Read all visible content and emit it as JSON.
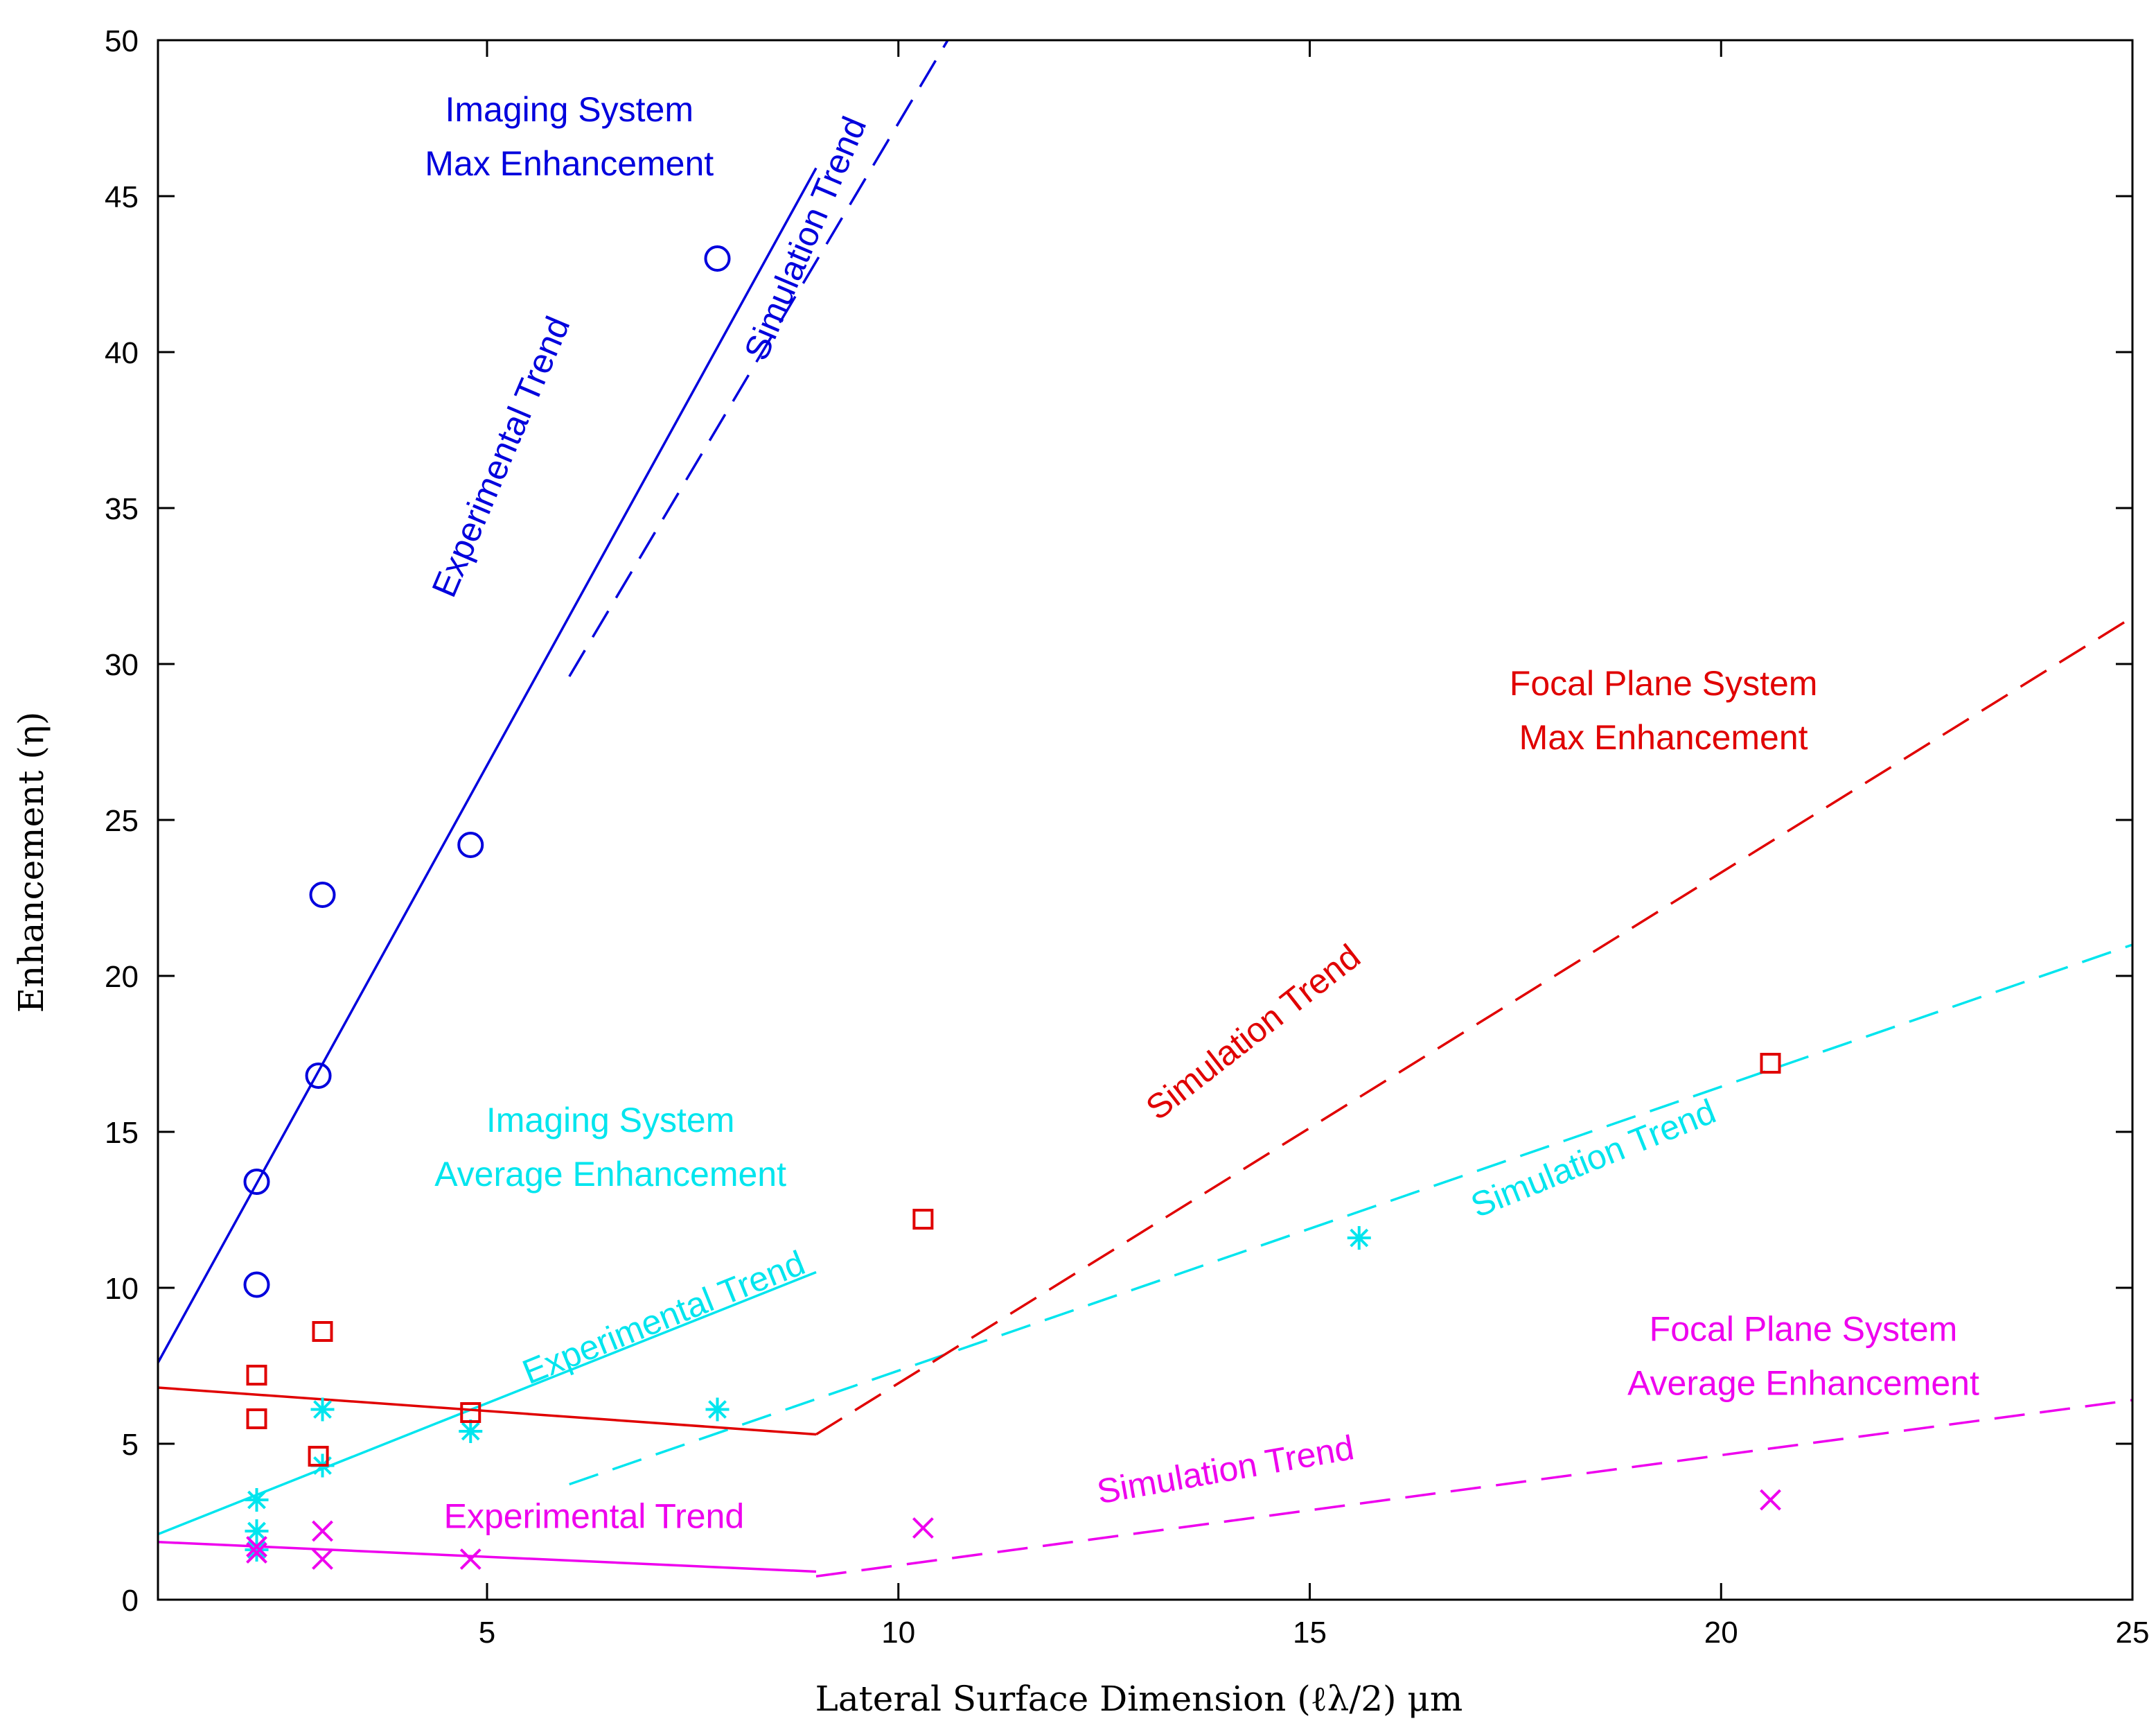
{
  "chart_data": {
    "type": "scatter",
    "title": "",
    "xlabel": "Lateral Surface Dimension (ℓλ/2) μm",
    "ylabel": "Enhancement (η)",
    "xlim": [
      1,
      25
    ],
    "ylim": [
      0,
      50
    ],
    "xticks": [
      5,
      10,
      15,
      20,
      25
    ],
    "yticks": [
      0,
      5,
      10,
      15,
      20,
      25,
      30,
      35,
      40,
      45,
      50
    ],
    "colors": {
      "imaging_max": "#0000dd",
      "imaging_avg": "#00e5ee",
      "focal_max": "#e00000",
      "focal_avg": "#ee00ee"
    },
    "series": [
      {
        "name": "Imaging System Max Enhancement",
        "marker": "circle",
        "color": "#0000dd",
        "points": [
          [
            2.2,
            13.4
          ],
          [
            2.2,
            10.1
          ],
          [
            2.95,
            16.8
          ],
          [
            3.0,
            22.6
          ],
          [
            4.8,
            24.2
          ],
          [
            7.8,
            43.0
          ]
        ]
      },
      {
        "name": "Imaging System Average Enhancement",
        "marker": "star",
        "color": "#00e5ee",
        "points": [
          [
            2.2,
            3.2
          ],
          [
            2.2,
            2.2
          ],
          [
            2.2,
            1.6
          ],
          [
            3.0,
            6.1
          ],
          [
            3.0,
            4.3
          ],
          [
            4.8,
            5.4
          ],
          [
            7.8,
            6.1
          ],
          [
            15.6,
            11.6
          ]
        ]
      },
      {
        "name": "Focal Plane System Max Enhancement",
        "marker": "square",
        "color": "#e00000",
        "points": [
          [
            2.2,
            7.2
          ],
          [
            2.2,
            5.8
          ],
          [
            3.0,
            8.6
          ],
          [
            2.95,
            4.6
          ],
          [
            4.8,
            6.0
          ],
          [
            10.3,
            12.2
          ],
          [
            20.6,
            17.2
          ]
        ]
      },
      {
        "name": "Focal Plane System Average Enhancement",
        "marker": "x",
        "color": "#ee00ee",
        "points": [
          [
            2.2,
            1.7
          ],
          [
            2.2,
            1.5
          ],
          [
            3.0,
            2.2
          ],
          [
            3.0,
            1.3
          ],
          [
            4.8,
            1.3
          ],
          [
            10.3,
            2.3
          ],
          [
            20.6,
            3.2
          ]
        ]
      }
    ],
    "trend_lines": [
      {
        "name": "Imaging Max Experimental Trend",
        "style": "solid",
        "color": "#0000dd",
        "from": [
          1.0,
          7.6
        ],
        "to": [
          9.0,
          45.9
        ]
      },
      {
        "name": "Imaging Max Simulation Trend",
        "style": "dashed",
        "color": "#0000dd",
        "from": [
          6.0,
          29.6
        ],
        "to": [
          10.6,
          50.0
        ]
      },
      {
        "name": "Imaging Avg Experimental Trend",
        "style": "solid",
        "color": "#00e5ee",
        "from": [
          1.0,
          2.1
        ],
        "to": [
          9.0,
          10.5
        ]
      },
      {
        "name": "Imaging Avg Simulation Trend",
        "style": "dashed",
        "color": "#00e5ee",
        "from": [
          6.0,
          3.7
        ],
        "to": [
          25.0,
          21.0
        ]
      },
      {
        "name": "Focal Max Experimental Trend",
        "style": "solid",
        "color": "#e00000",
        "from": [
          1.0,
          6.8
        ],
        "to": [
          9.0,
          5.3
        ]
      },
      {
        "name": "Focal Max Simulation Trend",
        "style": "dashed",
        "color": "#e00000",
        "from": [
          9.0,
          5.3
        ],
        "to": [
          25.0,
          31.5
        ]
      },
      {
        "name": "Focal Avg Experimental Trend",
        "style": "solid",
        "color": "#ee00ee",
        "from": [
          1.0,
          1.85
        ],
        "to": [
          9.0,
          0.9
        ]
      },
      {
        "name": "Focal Avg Simulation Trend",
        "style": "dashed",
        "color": "#ee00ee",
        "from": [
          9.0,
          0.75
        ],
        "to": [
          25.0,
          6.4
        ]
      }
    ],
    "annotations": [
      {
        "id": "imaging-max-title",
        "lines": [
          "Imaging System",
          "Max Enhancement"
        ],
        "color": "#0000dd",
        "at": [
          6.0,
          47.4
        ],
        "angle": 0
      },
      {
        "id": "imaging-max-exp",
        "lines": [
          "Experimental Trend"
        ],
        "color": "#0000dd",
        "at": [
          5.3,
          36.5
        ],
        "angle": -67
      },
      {
        "id": "imaging-max-sim",
        "lines": [
          "Simulation Trend"
        ],
        "color": "#0000dd",
        "at": [
          9.0,
          43.5
        ],
        "angle": -67
      },
      {
        "id": "imaging-avg-title",
        "lines": [
          "Imaging System",
          "Average Enhancement"
        ],
        "color": "#00e5ee",
        "at": [
          6.5,
          15.0
        ],
        "angle": 0
      },
      {
        "id": "imaging-avg-exp",
        "lines": [
          "Experimental Trend"
        ],
        "color": "#00e5ee",
        "at": [
          7.2,
          8.7
        ],
        "angle": -22
      },
      {
        "id": "imaging-avg-sim",
        "lines": [
          "Simulation Trend"
        ],
        "color": "#00e5ee",
        "at": [
          18.5,
          13.8
        ],
        "angle": -22
      },
      {
        "id": "focal-max-title",
        "lines": [
          "Focal Plane System",
          "Max Enhancement"
        ],
        "color": "#e00000",
        "at": [
          19.3,
          29.0
        ],
        "angle": 0
      },
      {
        "id": "focal-max-sim",
        "lines": [
          "Simulation Trend"
        ],
        "color": "#e00000",
        "at": [
          14.4,
          17.9
        ],
        "angle": -38
      },
      {
        "id": "focal-avg-title",
        "lines": [
          "Focal Plane System",
          "Average Enhancement"
        ],
        "color": "#ee00ee",
        "at": [
          21.0,
          8.3
        ],
        "angle": 0
      },
      {
        "id": "focal-avg-exp",
        "lines": [
          "Experimental Trend"
        ],
        "color": "#ee00ee",
        "at": [
          6.3,
          2.3
        ],
        "angle": 0
      },
      {
        "id": "focal-avg-sim",
        "lines": [
          "Simulation Trend"
        ],
        "color": "#ee00ee",
        "at": [
          14.0,
          3.8
        ],
        "angle": -10
      }
    ]
  }
}
